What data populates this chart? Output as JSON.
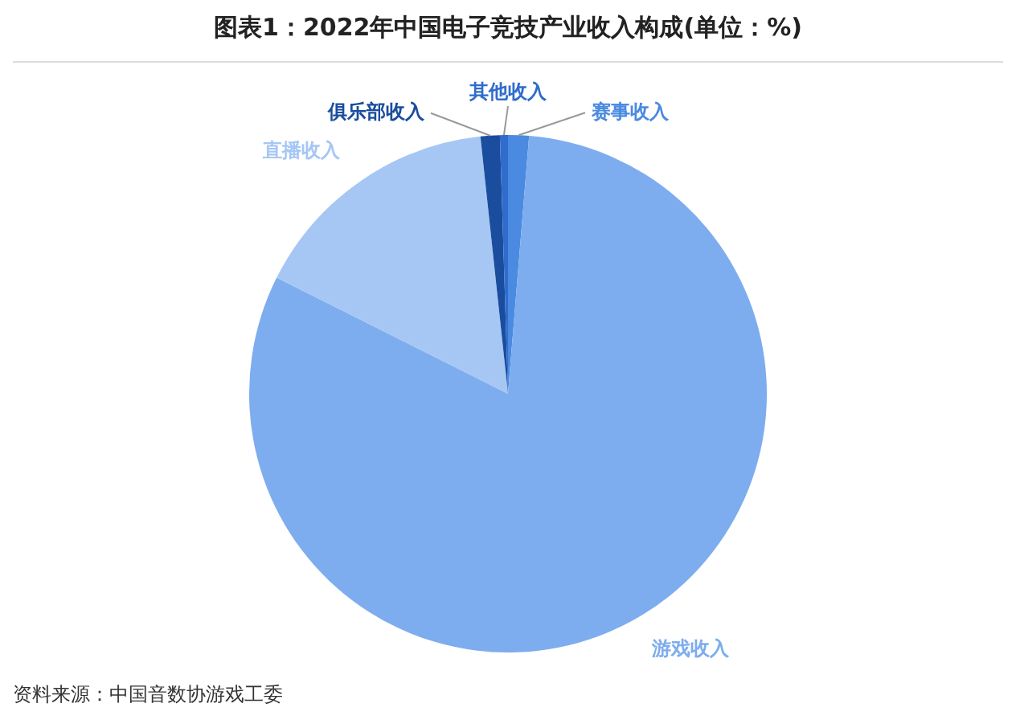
{
  "chart_data": {
    "type": "pie",
    "title": "图表1：2022年中国电子竞技产业收入构成(单位：%)",
    "categories": [
      "赛事收入",
      "游戏收入",
      "直播收入",
      "俱乐部收入",
      "其他收入"
    ],
    "values": [
      1.3,
      81.1,
      15.9,
      1.2,
      0.5
    ],
    "colors": [
      "#4a8ae0",
      "#7dadee",
      "#a6c7f4",
      "#1a4d9e",
      "#2f6ccc"
    ],
    "legend": false,
    "annotations": [
      "资料来源：中国音数协游戏工委"
    ]
  }
}
